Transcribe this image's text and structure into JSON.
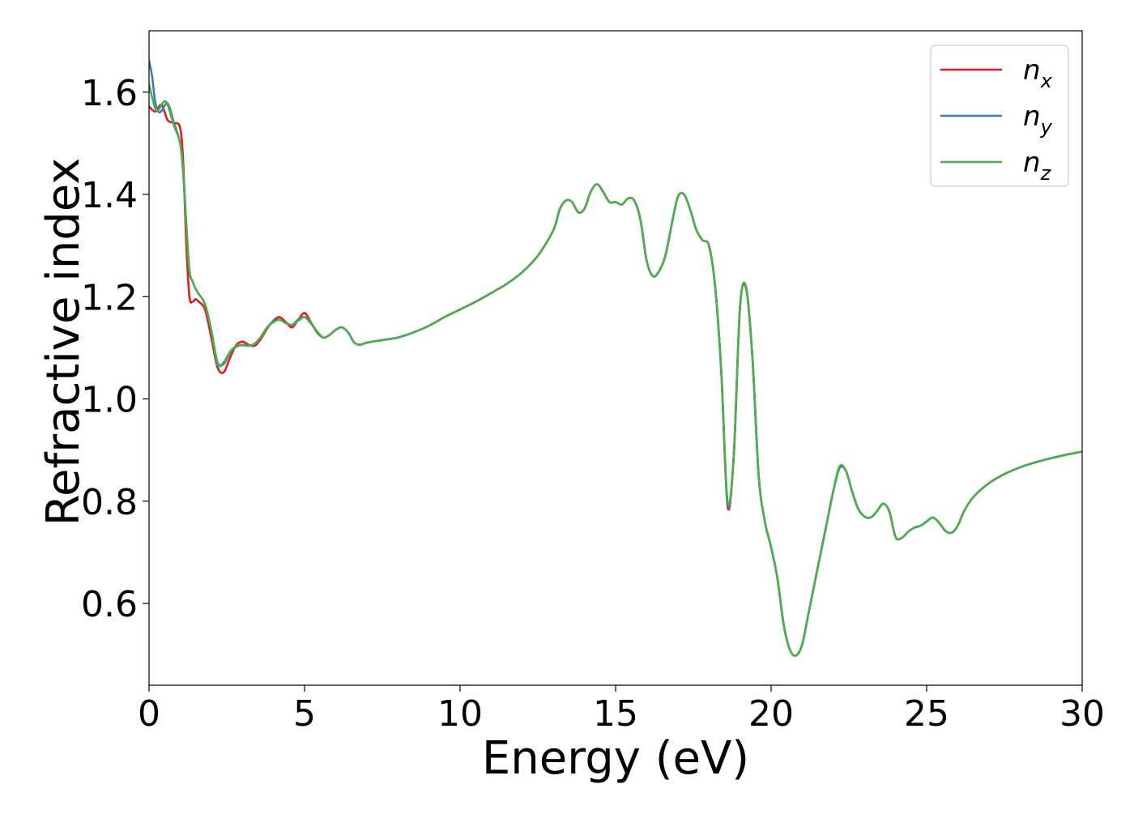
{
  "chart_data": {
    "type": "line",
    "title": "",
    "xlabel": "Energy (eV)",
    "ylabel": "Refractive index",
    "xlim": [
      0,
      30
    ],
    "ylim": [
      0.44,
      1.72
    ],
    "xticks": [
      0,
      5,
      10,
      15,
      20,
      25,
      30
    ],
    "yticks": [
      0.6,
      0.8,
      1.0,
      1.2,
      1.4,
      1.6
    ],
    "xtick_labels": [
      "0",
      "5",
      "10",
      "15",
      "20",
      "25",
      "30"
    ],
    "ytick_labels": [
      "0.6",
      "0.8",
      "1.0",
      "1.2",
      "1.4",
      "1.6"
    ],
    "grid": false,
    "legend_position": "top-right",
    "series": [
      {
        "name": "n_x",
        "label_main": "n",
        "label_sub": "x",
        "color": "#e41a1c",
        "x": [
          0,
          0.2,
          0.4,
          0.6,
          0.8,
          1.0,
          1.1,
          1.2,
          1.3,
          1.4,
          1.5,
          1.6,
          1.8,
          2.0,
          2.2,
          2.4,
          2.6,
          2.8,
          3.0,
          3.2,
          3.4,
          3.6,
          3.8,
          4.0,
          4.2,
          4.4,
          4.6,
          4.8,
          5.0,
          5.2,
          5.4,
          5.6,
          5.8,
          6.0,
          6.2,
          6.4,
          6.6,
          6.8,
          7.0,
          7.5,
          8.0,
          8.5,
          9.0,
          9.5,
          10.0,
          10.5,
          11.0,
          11.5,
          12.0,
          12.5,
          13.0,
          13.2,
          13.4,
          13.6,
          13.8,
          14.0,
          14.2,
          14.4,
          14.6,
          14.8,
          15.0,
          15.2,
          15.4,
          15.6,
          15.8,
          16.0,
          16.2,
          16.4,
          16.6,
          16.8,
          17.0,
          17.2,
          17.4,
          17.6,
          17.8,
          18.0,
          18.2,
          18.4,
          18.6,
          18.8,
          19.0,
          19.2,
          19.4,
          19.6,
          19.8,
          20.0,
          20.2,
          20.4,
          20.6,
          20.8,
          21.0,
          21.2,
          21.4,
          21.6,
          21.8,
          22.0,
          22.2,
          22.4,
          22.6,
          22.8,
          23.0,
          23.2,
          23.4,
          23.6,
          23.8,
          24.0,
          24.2,
          24.4,
          24.6,
          24.8,
          25.0,
          25.2,
          25.4,
          25.6,
          25.8,
          26.0,
          26.2,
          26.5,
          27.0,
          27.5,
          28.0,
          28.5,
          29.0,
          29.5,
          30.0
        ],
        "y": [
          1.572,
          1.562,
          1.575,
          1.545,
          1.54,
          1.53,
          1.46,
          1.3,
          1.2,
          1.19,
          1.195,
          1.19,
          1.175,
          1.12,
          1.062,
          1.052,
          1.08,
          1.105,
          1.112,
          1.106,
          1.104,
          1.118,
          1.138,
          1.153,
          1.16,
          1.15,
          1.14,
          1.155,
          1.168,
          1.15,
          1.13,
          1.12,
          1.125,
          1.135,
          1.14,
          1.13,
          1.11,
          1.106,
          1.11,
          1.115,
          1.12,
          1.13,
          1.143,
          1.16,
          1.175,
          1.19,
          1.207,
          1.225,
          1.248,
          1.28,
          1.33,
          1.37,
          1.388,
          1.385,
          1.365,
          1.372,
          1.405,
          1.42,
          1.405,
          1.385,
          1.385,
          1.38,
          1.392,
          1.388,
          1.35,
          1.27,
          1.24,
          1.25,
          1.28,
          1.34,
          1.395,
          1.4,
          1.37,
          1.33,
          1.31,
          1.3,
          1.22,
          1.05,
          0.79,
          0.89,
          1.18,
          1.215,
          1.08,
          0.85,
          0.76,
          0.71,
          0.65,
          0.56,
          0.51,
          0.498,
          0.52,
          0.58,
          0.64,
          0.7,
          0.76,
          0.82,
          0.865,
          0.86,
          0.82,
          0.785,
          0.77,
          0.768,
          0.78,
          0.795,
          0.78,
          0.73,
          0.728,
          0.74,
          0.748,
          0.752,
          0.76,
          0.768,
          0.758,
          0.742,
          0.738,
          0.752,
          0.78,
          0.808,
          0.835,
          0.853,
          0.866,
          0.876,
          0.884,
          0.891,
          0.897
        ]
      },
      {
        "name": "n_y",
        "label_main": "n",
        "label_sub": "y",
        "color": "#377eb8",
        "x": [
          0,
          0.1,
          0.2,
          0.3,
          0.4,
          0.6,
          0.8,
          1.0,
          1.1,
          1.2,
          1.3,
          1.4,
          1.5,
          1.6,
          1.8,
          2.0,
          2.2,
          2.4,
          2.6,
          2.8,
          3.0,
          3.2,
          3.4,
          3.6,
          3.8,
          4.0,
          4.2,
          4.4,
          4.6,
          4.8,
          5.0,
          5.2,
          5.4,
          5.6,
          5.8,
          6.0,
          6.2,
          6.4,
          6.6,
          6.8,
          7.0,
          7.5,
          8.0,
          8.5,
          9.0,
          9.5,
          10.0,
          10.5,
          11.0,
          11.5,
          12.0,
          12.5,
          13.0,
          13.2,
          13.4,
          13.6,
          13.8,
          14.0,
          14.2,
          14.4,
          14.6,
          14.8,
          15.0,
          15.2,
          15.4,
          15.6,
          15.8,
          16.0,
          16.2,
          16.4,
          16.6,
          16.8,
          17.0,
          17.2,
          17.4,
          17.6,
          17.8,
          18.0,
          18.2,
          18.4,
          18.6,
          18.8,
          19.0,
          19.2,
          19.4,
          19.6,
          19.8,
          20.0,
          20.2,
          20.4,
          20.6,
          20.8,
          21.0,
          21.2,
          21.4,
          21.6,
          21.8,
          22.0,
          22.2,
          22.4,
          22.6,
          22.8,
          23.0,
          23.2,
          23.4,
          23.6,
          23.8,
          24.0,
          24.2,
          24.4,
          24.6,
          24.8,
          25.0,
          25.2,
          25.4,
          25.6,
          25.8,
          26.0,
          26.2,
          26.5,
          27.0,
          27.5,
          28.0,
          28.5,
          29.0,
          29.5,
          30.0
        ],
        "y": [
          1.662,
          1.63,
          1.58,
          1.562,
          1.563,
          1.578,
          1.54,
          1.5,
          1.44,
          1.34,
          1.25,
          1.23,
          1.215,
          1.205,
          1.185,
          1.135,
          1.072,
          1.068,
          1.09,
          1.102,
          1.105,
          1.104,
          1.108,
          1.122,
          1.14,
          1.152,
          1.155,
          1.148,
          1.145,
          1.155,
          1.16,
          1.148,
          1.132,
          1.12,
          1.125,
          1.135,
          1.14,
          1.13,
          1.11,
          1.106,
          1.11,
          1.115,
          1.12,
          1.13,
          1.143,
          1.16,
          1.175,
          1.19,
          1.207,
          1.225,
          1.248,
          1.28,
          1.33,
          1.37,
          1.388,
          1.385,
          1.365,
          1.372,
          1.405,
          1.42,
          1.405,
          1.385,
          1.385,
          1.38,
          1.392,
          1.388,
          1.35,
          1.27,
          1.24,
          1.25,
          1.28,
          1.34,
          1.395,
          1.4,
          1.37,
          1.33,
          1.31,
          1.3,
          1.22,
          1.05,
          0.795,
          0.89,
          1.18,
          1.215,
          1.08,
          0.85,
          0.76,
          0.71,
          0.65,
          0.56,
          0.51,
          0.498,
          0.52,
          0.58,
          0.64,
          0.7,
          0.76,
          0.82,
          0.865,
          0.86,
          0.82,
          0.785,
          0.77,
          0.768,
          0.78,
          0.795,
          0.78,
          0.73,
          0.728,
          0.74,
          0.748,
          0.752,
          0.76,
          0.768,
          0.758,
          0.742,
          0.738,
          0.752,
          0.78,
          0.808,
          0.835,
          0.853,
          0.866,
          0.876,
          0.884,
          0.891,
          0.897
        ]
      },
      {
        "name": "n_z",
        "label_main": "n",
        "label_sub": "z",
        "color": "#4daf4a",
        "x": [
          0,
          0.1,
          0.2,
          0.3,
          0.4,
          0.5,
          0.6,
          0.8,
          1.0,
          1.1,
          1.2,
          1.3,
          1.4,
          1.5,
          1.6,
          1.8,
          2.0,
          2.2,
          2.4,
          2.6,
          2.8,
          3.0,
          3.2,
          3.4,
          3.6,
          3.8,
          4.0,
          4.2,
          4.4,
          4.6,
          4.8,
          5.0,
          5.2,
          5.4,
          5.6,
          5.8,
          6.0,
          6.2,
          6.4,
          6.6,
          6.8,
          7.0,
          7.5,
          8.0,
          8.5,
          9.0,
          9.5,
          10.0,
          10.5,
          11.0,
          11.5,
          12.0,
          12.5,
          13.0,
          13.2,
          13.4,
          13.6,
          13.8,
          14.0,
          14.2,
          14.4,
          14.6,
          14.8,
          15.0,
          15.2,
          15.4,
          15.6,
          15.8,
          16.0,
          16.2,
          16.4,
          16.6,
          16.8,
          17.0,
          17.2,
          17.4,
          17.6,
          17.8,
          18.0,
          18.2,
          18.4,
          18.6,
          18.8,
          19.0,
          19.2,
          19.4,
          19.6,
          19.8,
          20.0,
          20.2,
          20.4,
          20.6,
          20.8,
          21.0,
          21.2,
          21.4,
          21.6,
          21.8,
          22.0,
          22.2,
          22.4,
          22.6,
          22.8,
          23.0,
          23.2,
          23.4,
          23.6,
          23.8,
          24.0,
          24.2,
          24.4,
          24.6,
          24.8,
          25.0,
          25.2,
          25.4,
          25.6,
          25.8,
          26.0,
          26.2,
          26.5,
          27.0,
          27.5,
          28.0,
          28.5,
          29.0,
          29.5,
          30.0
        ],
        "y": [
          1.615,
          1.59,
          1.568,
          1.565,
          1.575,
          1.582,
          1.575,
          1.535,
          1.5,
          1.44,
          1.34,
          1.25,
          1.23,
          1.215,
          1.205,
          1.185,
          1.135,
          1.068,
          1.072,
          1.092,
          1.103,
          1.106,
          1.104,
          1.108,
          1.122,
          1.14,
          1.15,
          1.155,
          1.148,
          1.145,
          1.153,
          1.16,
          1.148,
          1.132,
          1.12,
          1.125,
          1.135,
          1.14,
          1.13,
          1.11,
          1.106,
          1.11,
          1.115,
          1.12,
          1.13,
          1.143,
          1.16,
          1.175,
          1.19,
          1.207,
          1.225,
          1.248,
          1.28,
          1.33,
          1.37,
          1.388,
          1.385,
          1.365,
          1.372,
          1.405,
          1.42,
          1.405,
          1.385,
          1.385,
          1.38,
          1.392,
          1.388,
          1.35,
          1.27,
          1.24,
          1.25,
          1.28,
          1.34,
          1.395,
          1.4,
          1.37,
          1.33,
          1.31,
          1.3,
          1.22,
          1.05,
          0.8,
          0.89,
          1.18,
          1.218,
          1.08,
          0.85,
          0.76,
          0.71,
          0.65,
          0.56,
          0.51,
          0.498,
          0.52,
          0.58,
          0.64,
          0.7,
          0.76,
          0.82,
          0.868,
          0.86,
          0.82,
          0.785,
          0.77,
          0.768,
          0.78,
          0.795,
          0.78,
          0.73,
          0.728,
          0.74,
          0.748,
          0.752,
          0.76,
          0.768,
          0.758,
          0.742,
          0.738,
          0.752,
          0.78,
          0.808,
          0.835,
          0.853,
          0.866,
          0.876,
          0.884,
          0.891,
          0.897
        ]
      }
    ]
  }
}
